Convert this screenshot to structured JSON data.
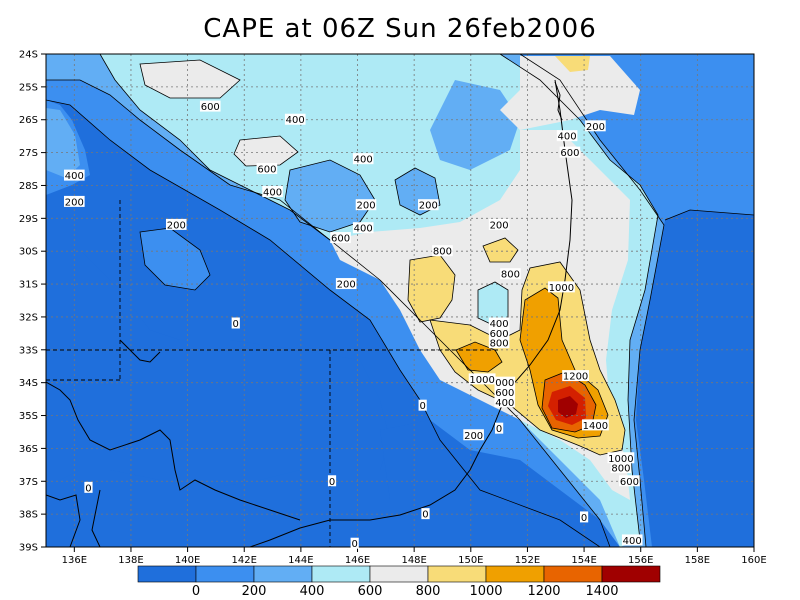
{
  "title": "CAPE at 06Z Sun 26feb2006",
  "colors": {
    "band_0": "#1f6fdc",
    "band_200": "#3c8ff0",
    "band_400": "#62aef4",
    "band_600": "#aeeaf5",
    "band_800": "#ebebeb",
    "band_1000": "#f8dc78",
    "band_1200": "#f0a000",
    "band_1400": "#e86400",
    "band_1600": "#d42000",
    "band_top": "#a00000"
  },
  "chart_data": {
    "type": "heatmap",
    "variable": "CAPE",
    "xlim": [
      135,
      160
    ],
    "ylim": [
      -39,
      -24
    ],
    "x_ticks": [
      "136E",
      "138E",
      "140E",
      "142E",
      "144E",
      "146E",
      "148E",
      "150E",
      "152E",
      "154E",
      "156E",
      "158E",
      "160E"
    ],
    "y_ticks": [
      "24S",
      "25S",
      "26S",
      "27S",
      "28S",
      "29S",
      "30S",
      "31S",
      "32S",
      "33S",
      "34S",
      "35S",
      "36S",
      "37S",
      "38S",
      "39S"
    ],
    "contour_levels": [
      0,
      200,
      400,
      600,
      800,
      1000,
      1200,
      1400
    ],
    "colorbar_labels": [
      "0",
      "200",
      "400",
      "600",
      "800",
      "1000",
      "1200",
      "1400"
    ],
    "contour_labels": [
      {
        "text": "600",
        "lon": 140.8,
        "lat": -25.6
      },
      {
        "text": "400",
        "lon": 143.8,
        "lat": -26.0
      },
      {
        "text": "400",
        "lon": 146.2,
        "lat": -27.2
      },
      {
        "text": "600",
        "lon": 142.8,
        "lat": -27.5
      },
      {
        "text": "400",
        "lon": 143.0,
        "lat": -28.2
      },
      {
        "text": "400",
        "lon": 136.0,
        "lat": -27.7
      },
      {
        "text": "200",
        "lon": 136.0,
        "lat": -28.5
      },
      {
        "text": "200",
        "lon": 146.3,
        "lat": -28.6
      },
      {
        "text": "200",
        "lon": 148.5,
        "lat": -28.6
      },
      {
        "text": "200",
        "lon": 139.6,
        "lat": -29.2
      },
      {
        "text": "400",
        "lon": 146.2,
        "lat": -29.3
      },
      {
        "text": "600",
        "lon": 145.4,
        "lat": -29.6
      },
      {
        "text": "200",
        "lon": 151.0,
        "lat": -29.2
      },
      {
        "text": "400",
        "lon": 153.4,
        "lat": -26.5
      },
      {
        "text": "200",
        "lon": 154.4,
        "lat": -26.2
      },
      {
        "text": "600",
        "lon": 153.5,
        "lat": -27.0
      },
      {
        "text": "800",
        "lon": 149.0,
        "lat": -30.0
      },
      {
        "text": "800",
        "lon": 151.4,
        "lat": -30.7
      },
      {
        "text": "200",
        "lon": 145.6,
        "lat": -31.0
      },
      {
        "text": "1000",
        "lon": 153.2,
        "lat": -31.1
      },
      {
        "text": "0",
        "lon": 141.7,
        "lat": -32.2
      },
      {
        "text": "400",
        "lon": 151.0,
        "lat": -32.2
      },
      {
        "text": "600",
        "lon": 151.0,
        "lat": -32.5
      },
      {
        "text": "800",
        "lon": 151.0,
        "lat": -32.8
      },
      {
        "text": "1200",
        "lon": 153.7,
        "lat": -33.8
      },
      {
        "text": "1000",
        "lon": 150.4,
        "lat": -33.9
      },
      {
        "text": "000",
        "lon": 151.2,
        "lat": -34.0
      },
      {
        "text": "600",
        "lon": 151.2,
        "lat": -34.3
      },
      {
        "text": "400",
        "lon": 151.2,
        "lat": -34.6
      },
      {
        "text": "0",
        "lon": 148.3,
        "lat": -34.7
      },
      {
        "text": "1400",
        "lon": 154.4,
        "lat": -35.3
      },
      {
        "text": "0",
        "lon": 151.0,
        "lat": -35.4
      },
      {
        "text": "200",
        "lon": 150.1,
        "lat": -35.6
      },
      {
        "text": "1000",
        "lon": 155.3,
        "lat": -36.3
      },
      {
        "text": "800",
        "lon": 155.3,
        "lat": -36.6
      },
      {
        "text": "600",
        "lon": 155.6,
        "lat": -37.0
      },
      {
        "text": "0",
        "lon": 145.1,
        "lat": -37.0
      },
      {
        "text": "0",
        "lon": 136.5,
        "lat": -37.2
      },
      {
        "text": "0",
        "lon": 148.4,
        "lat": -38.0
      },
      {
        "text": "0",
        "lon": 154.0,
        "lat": -38.1
      },
      {
        "text": "0",
        "lon": 145.9,
        "lat": -38.9
      },
      {
        "text": "400",
        "lon": 155.7,
        "lat": -38.8
      }
    ]
  }
}
